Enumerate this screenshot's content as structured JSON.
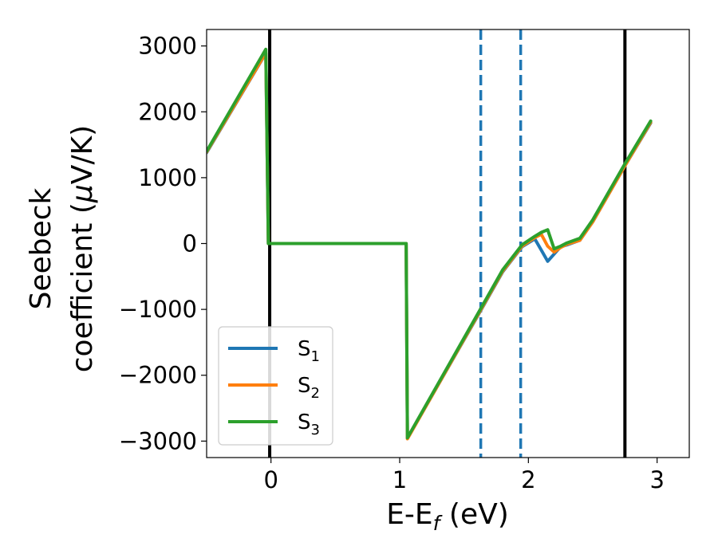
{
  "chart_data": {
    "type": "line",
    "xlabel": "E-E",
    "xlabel_sub": "f",
    "xlabel_unit": " (eV)",
    "ylabel_line1": "Seebeck",
    "ylabel_line2": "coefficient  (",
    "ylabel_mu": "μ",
    "ylabel_unit": "V/K)",
    "xlim": [
      -0.5,
      3.25
    ],
    "ylim": [
      -3250,
      3250
    ],
    "xticks": [
      0,
      1,
      2,
      3
    ],
    "xtick_labels": [
      "0",
      "1",
      "2",
      "3"
    ],
    "yticks": [
      -3000,
      -2000,
      -1000,
      0,
      1000,
      2000,
      3000
    ],
    "ytick_labels": [
      "−3000",
      "−2000",
      "−1000",
      "0",
      "1000",
      "2000",
      "3000"
    ],
    "grid": false,
    "legend_position": "lower-left",
    "vlines": [
      {
        "x": -0.01,
        "style": "solid",
        "color": "#000000"
      },
      {
        "x": 2.75,
        "style": "solid",
        "color": "#000000"
      },
      {
        "x": 1.63,
        "style": "dashed",
        "color": "#1f77b4"
      },
      {
        "x": 1.94,
        "style": "dashed",
        "color": "#1f77b4"
      }
    ],
    "series": [
      {
        "name": "S",
        "sub": "1",
        "color": "#1f77b4",
        "x": [
          -0.5,
          -0.04,
          -0.02,
          1.05,
          1.06,
          1.6,
          1.8,
          1.95,
          2.05,
          2.1,
          2.15,
          2.2,
          2.25,
          2.3,
          2.4,
          2.5,
          2.75,
          2.95
        ],
        "y": [
          1380,
          2890,
          0,
          0,
          -2960,
          -1120,
          -430,
          -50,
          70,
          -100,
          -270,
          -160,
          -50,
          -20,
          50,
          330,
          1180,
          1830
        ]
      },
      {
        "name": "S",
        "sub": "2",
        "color": "#ff7f0e",
        "x": [
          -0.5,
          -0.04,
          -0.02,
          1.05,
          1.06,
          1.6,
          1.8,
          1.95,
          2.05,
          2.1,
          2.15,
          2.2,
          2.25,
          2.3,
          2.4,
          2.5,
          2.75,
          2.95
        ],
        "y": [
          1390,
          2895,
          0,
          0,
          -2965,
          -1110,
          -420,
          -40,
          90,
          140,
          -40,
          -130,
          -60,
          -10,
          50,
          330,
          1180,
          1840
        ]
      },
      {
        "name": "S",
        "sub": "3",
        "color": "#2ca02c",
        "x": [
          -0.5,
          -0.04,
          -0.02,
          1.05,
          1.06,
          1.6,
          1.8,
          1.95,
          2.05,
          2.1,
          2.15,
          2.2,
          2.25,
          2.3,
          2.4,
          2.5,
          2.75,
          2.95
        ],
        "y": [
          1400,
          2950,
          0,
          0,
          -2950,
          -1090,
          -400,
          -20,
          110,
          170,
          210,
          -80,
          -40,
          10,
          80,
          360,
          1210,
          1860
        ]
      }
    ]
  }
}
